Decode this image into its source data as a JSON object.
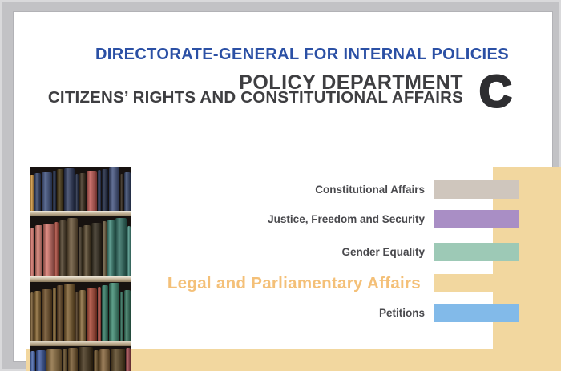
{
  "header": {
    "directorate": "DIRECTORATE-GENERAL FOR INTERNAL POLICIES",
    "title": "POLICY DEPARTMENT",
    "subtitle": "CITIZENS’ RIGHTS AND CONSTITUTIONAL AFFAIRS",
    "department_letter": "C"
  },
  "policy_areas": [
    {
      "label": "Constitutional Affairs",
      "color": "#cfc6bd",
      "highlight": false
    },
    {
      "label": "Justice, Freedom and Security",
      "color": "#a98ec5",
      "highlight": false
    },
    {
      "label": "Gender Equality",
      "color": "#9dc9b6",
      "highlight": false
    },
    {
      "label": "Legal and Parliamentary Affairs",
      "color": "#f2d79f",
      "highlight": true
    },
    {
      "label": "Petitions",
      "color": "#82bae9",
      "highlight": false
    }
  ],
  "colors": {
    "directorate_blue": "#2b50a5",
    "title_dark": "#3e3e41",
    "department_letter_dark": "#2e2e31",
    "label_gray": "#49494d",
    "highlight_orange": "#f4c078",
    "accent_beige": "#f2d79f",
    "frame_gray": "#c2c2c5"
  },
  "decor": {
    "bookshelf_shelves": [
      {
        "colors": [
          "#d79a3e",
          "#2f3f66",
          "#3c4f7e",
          "#23304f",
          "#44340f",
          "#2e3a5e",
          "#1d2742",
          "#3a2b1a",
          "#c0554f",
          "#2c3a60",
          "#16203a",
          "#41517e",
          "#2a1f12",
          "#35466e"
        ]
      },
      {
        "colors": [
          "#d8746a",
          "#db7f72",
          "#d8746a",
          "#b14a3c",
          "#4a3a24",
          "#6a5436",
          "#3c2f1c",
          "#57452a",
          "#2f2718",
          "#6b5b3a",
          "#3f8a7a",
          "#2e6e62",
          "#4a9687"
        ]
      },
      {
        "colors": [
          "#7a5a2e",
          "#8a662f",
          "#6b4a22",
          "#96743c",
          "#5d3f1d",
          "#7d5c2c",
          "#4a3318",
          "#8a6a38",
          "#a8432f",
          "#c2554a",
          "#2f7a62",
          "#3c8a70",
          "#2a6a55",
          "#34775f"
        ]
      },
      {
        "colors": [
          "#4767b0",
          "#3a57a0",
          "#8a6a3a",
          "#5d451f",
          "#74552a",
          "#402f15",
          "#6b4e24",
          "#8a673a",
          "#55401e",
          "#a0454a"
        ]
      }
    ]
  }
}
